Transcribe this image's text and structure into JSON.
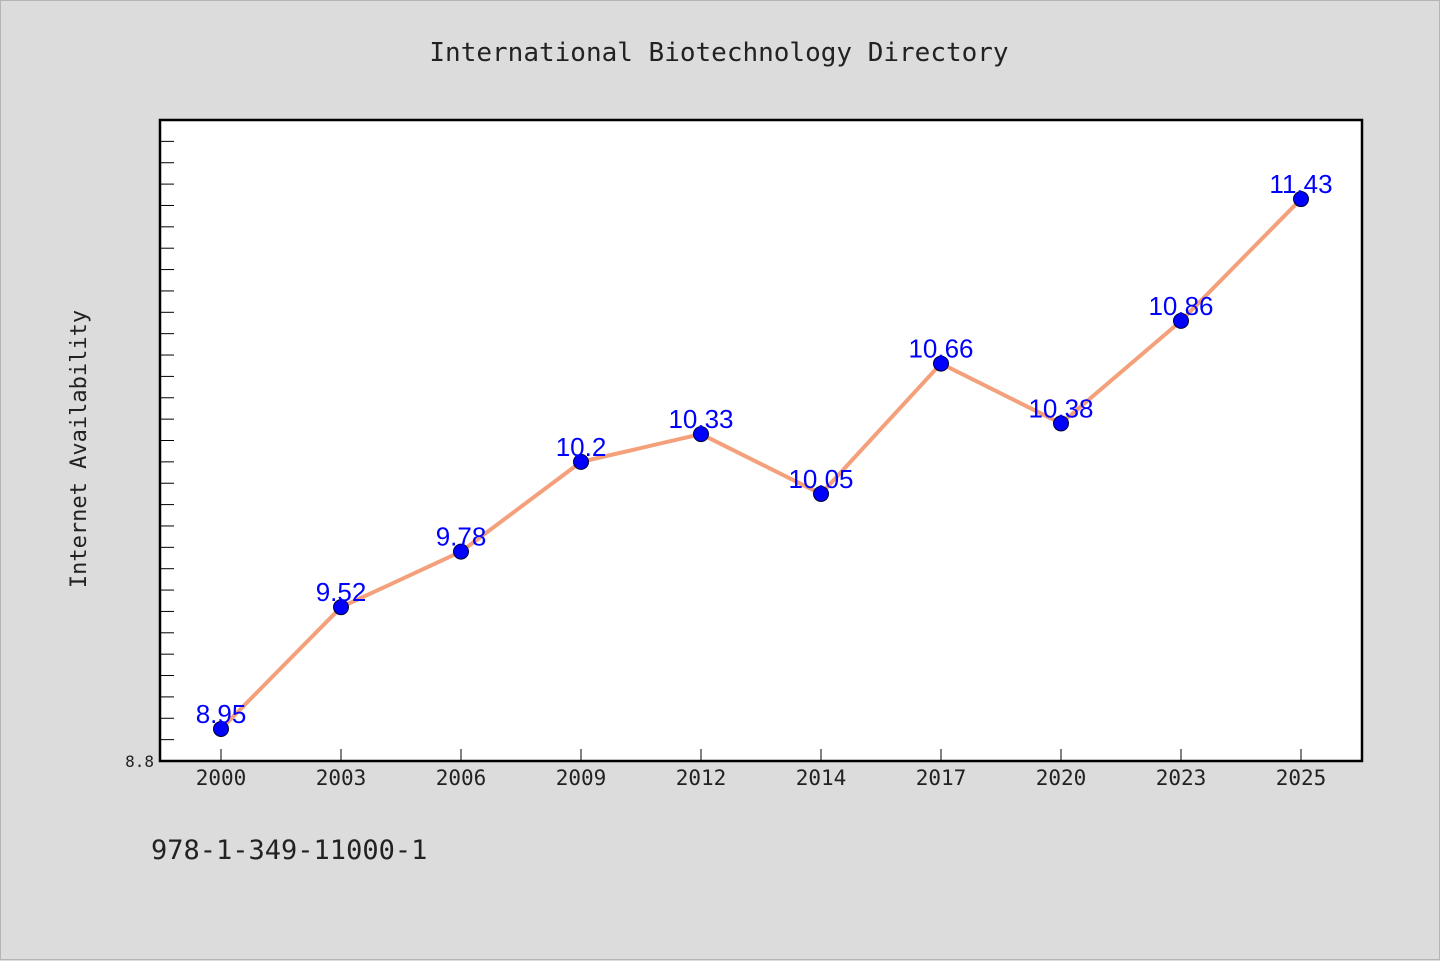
{
  "chart_data": {
    "type": "line",
    "title": "International Biotechnology Directory",
    "ylabel": "Internet Availability",
    "xlabel": "",
    "categories": [
      "2000",
      "2003",
      "2006",
      "2009",
      "2012",
      "2014",
      "2017",
      "2020",
      "2023",
      "2025"
    ],
    "series": [
      {
        "values": [
          8.95,
          9.52,
          9.78,
          10.2,
          10.33,
          10.05,
          10.66,
          10.38,
          10.86,
          11.43
        ],
        "line_color": "#f4a07a",
        "marker_color": "#0000ff"
      }
    ],
    "data_labels": [
      "8.95",
      "9.52",
      "9.78",
      "10.2",
      "10.33",
      "10.05",
      "10.66",
      "10.38",
      "10.86",
      "11.43"
    ],
    "ylim": [
      8.8,
      11.8
    ],
    "yticks_labeled": [
      "8.8"
    ],
    "grid": false,
    "legend": "none"
  },
  "footer": {
    "code": "978-1-349-11000-1"
  },
  "colors": {
    "background": "#dcdcdc",
    "plot_background": "#ffffff",
    "line": "#f4a07a",
    "marker": "#0000ff",
    "data_label": "#0000ff"
  }
}
